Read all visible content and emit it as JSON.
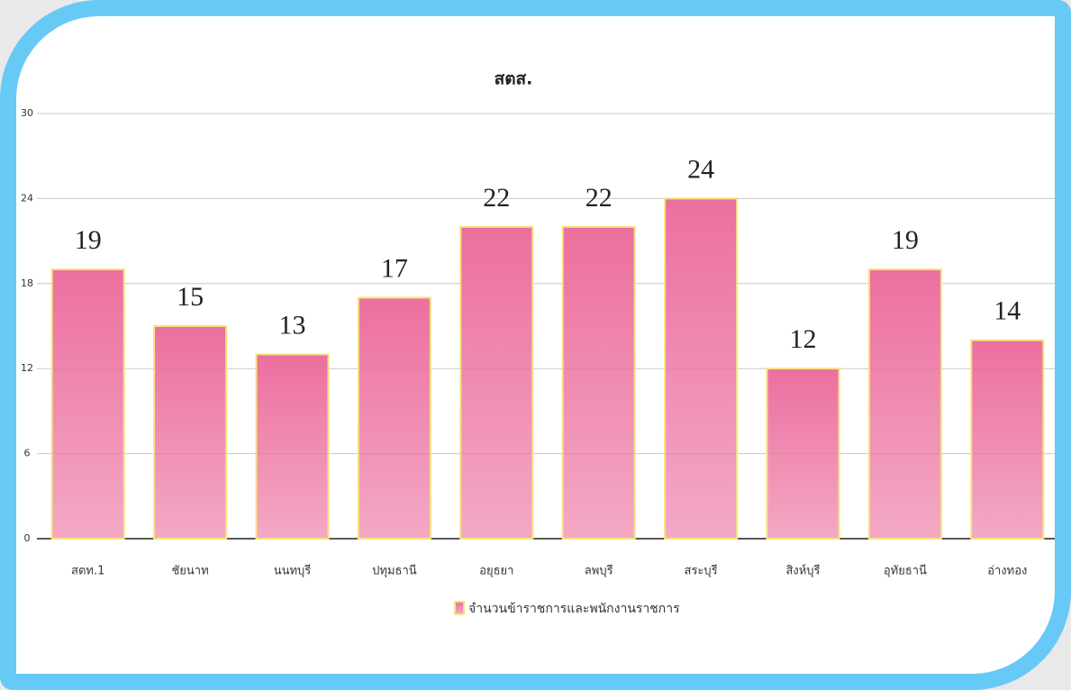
{
  "chart_data": {
    "type": "bar",
    "title": "สตส.",
    "categories": [
      "สตท.1",
      "ชัยนาท",
      "นนทบุรี",
      "ปทุมธานี",
      "อยุธยา",
      "ลพบุรี",
      "สระบุรี",
      "สิงห์บุรี",
      "อุทัยธานี",
      "อ่างทอง"
    ],
    "series": [
      {
        "name": "จำนวนข้าราชการและพนักงานราชการ",
        "color": "#ec6f9f",
        "values": [
          19,
          15,
          13,
          17,
          22,
          22,
          24,
          12,
          19,
          14
        ]
      }
    ],
    "ylim": [
      0,
      30
    ],
    "yticks": [
      0,
      6,
      12,
      18,
      24,
      30
    ],
    "grid": true,
    "legend": "bottom"
  }
}
